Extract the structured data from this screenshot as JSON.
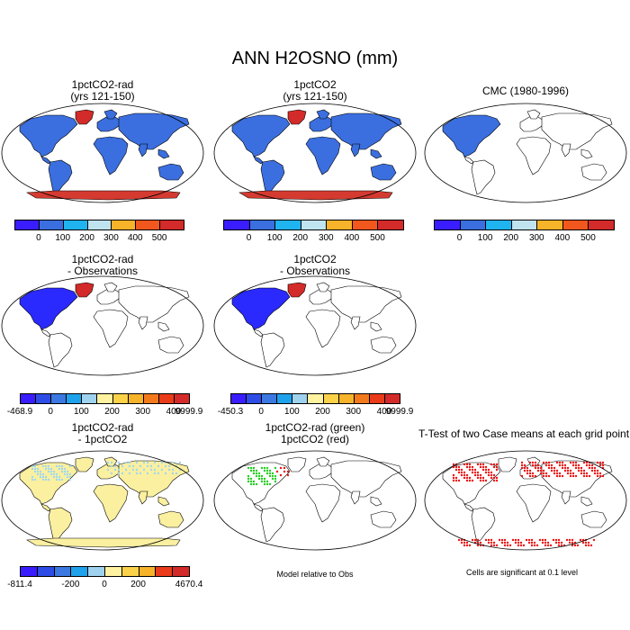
{
  "main_title": "ANN H2OSNO (mm)",
  "panels": [
    {
      "id": "p1",
      "title1": "1pctCO2-rad",
      "title2": "(yrs 121-150)"
    },
    {
      "id": "p2",
      "title1": "1pctCO2",
      "title2": "(yrs 121-150)"
    },
    {
      "id": "p3",
      "title1": "CMC (1980-1996)",
      "title2": ""
    },
    {
      "id": "p4",
      "title1": "1pctCO2-rad",
      "title2": "- Observations"
    },
    {
      "id": "p5",
      "title1": "1pctCO2",
      "title2": "- Observations"
    },
    {
      "id": "p7",
      "title1": "1pctCO2-rad",
      "title2": "- 1pctCO2"
    },
    {
      "id": "p8",
      "title1": "1pctCO2-rad (green)",
      "title2": "1pctCO2 (red)"
    },
    {
      "id": "p9",
      "title1": "T-Test of two Case means at each grid point",
      "title2": ""
    }
  ],
  "notes": {
    "model_relative": "Model relative to Obs",
    "cells_significant": "Cells are significant at 0.1 level"
  },
  "colorbars": {
    "abs": {
      "colors": [
        "#3a1dff",
        "#3b6fe0",
        "#1fb4f0",
        "#bfe3ef",
        "#f7b32a",
        "#f2581e",
        "#d32a2a"
      ],
      "labels": [
        "0",
        "100",
        "200",
        "300",
        "400",
        "500"
      ]
    },
    "diff_rad": {
      "colors": [
        "#3a1dff",
        "#2e4ce6",
        "#3b78e2",
        "#1fa2ec",
        "#9fd2ee",
        "#fff2a0",
        "#fbd24a",
        "#f7b32a",
        "#f27a1d",
        "#ea3c1a",
        "#d32a2a"
      ],
      "labels": [
        "-468.9",
        "0",
        "100",
        "200",
        "300",
        "400",
        "9999.9"
      ],
      "label_idx": [
        0,
        2,
        4,
        6,
        8,
        10,
        11
      ]
    },
    "diff_co2": {
      "colors": [
        "#3a1dff",
        "#2e4ce6",
        "#3b78e2",
        "#1fa2ec",
        "#9fd2ee",
        "#fff2a0",
        "#fbd24a",
        "#f7b32a",
        "#f27a1d",
        "#ea3c1a",
        "#d32a2a"
      ],
      "labels": [
        "-450.3",
        "0",
        "100",
        "200",
        "300",
        "400",
        "9999.9"
      ],
      "label_idx": [
        0,
        2,
        4,
        6,
        8,
        10,
        11
      ]
    },
    "rad_minus_co2": {
      "colors": [
        "#3a1dff",
        "#2e4ce6",
        "#3b78e2",
        "#1fa2ec",
        "#9fd2ee",
        "#fff2a0",
        "#fbd24a",
        "#f7b32a",
        "#ea3c1a",
        "#d32a2a"
      ],
      "labels": [
        "-811.4",
        "-200",
        "0",
        "200",
        "4670.4"
      ],
      "label_idx": [
        0,
        3,
        5,
        7,
        10
      ]
    }
  },
  "chart_data": {
    "type": "heatmap",
    "variable": "H2OSNO",
    "units": "mm",
    "season": "ANN",
    "colors": {
      "land_snow_blue": "#3b6fe0",
      "dark_blue": "#2a2aff",
      "greenland_red": "#d32a2a",
      "antarctica_red": "#d43a30",
      "yellow_diff": "#fbf0a0",
      "cyan_diff": "#9fd8ee",
      "sig_green": "#22cc22",
      "sig_red": "#ee1111"
    }
  }
}
